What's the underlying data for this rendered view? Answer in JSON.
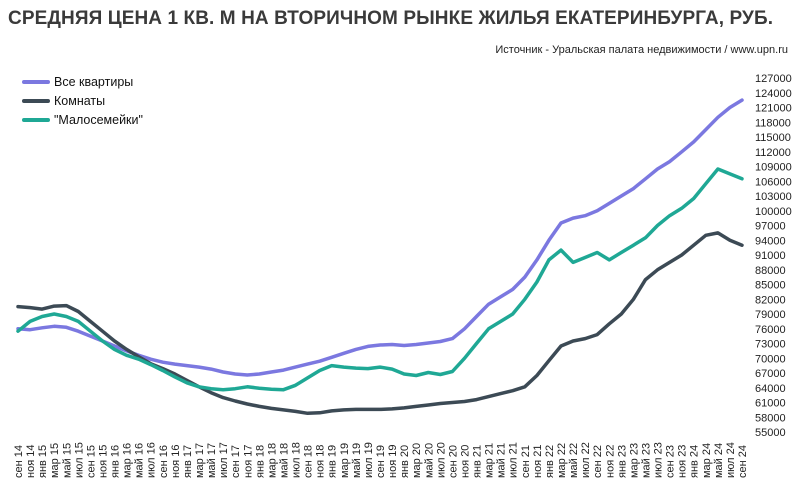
{
  "header": {
    "title": "СРЕДНЯЯ ЦЕНА 1 КВ. М НА ВТОРИЧНОМ РЫНКЕ ЖИЛЬЯ ЕКАТЕРИНБУРГА, РУБ.",
    "source": "Источник - Уральская палата недвижимости  / www.upn.ru"
  },
  "chart_data": {
    "type": "line",
    "title": "СРЕДНЯЯ ЦЕНА 1 КВ. М НА ВТОРИЧНОМ РЫНКЕ ЖИЛЬЯ ЕКАТЕРИНБУРГА, РУБ.",
    "ylim": [
      55000,
      127000
    ],
    "yticks": [
      55000,
      58000,
      61000,
      64000,
      67000,
      70000,
      73000,
      76000,
      79000,
      82000,
      85000,
      88000,
      91000,
      94000,
      97000,
      100000,
      103000,
      106000,
      109000,
      112000,
      115000,
      118000,
      121000,
      124000,
      127000
    ],
    "ytick_labels": [
      "55000",
      "58000",
      "61000",
      "64000",
      "67000",
      "70000",
      "73000",
      "76000",
      "79000",
      "82000",
      "85000",
      "88000",
      "91000",
      "94000",
      "97000",
      "100000",
      "103000",
      "106000",
      "109000",
      "112000",
      "115000",
      "118000",
      "121000",
      "124000",
      "127000"
    ],
    "x_labels": [
      "сен 14",
      "ноя 14",
      "янв 15",
      "мар 15",
      "май 15",
      "июл 15",
      "сен 15",
      "ноя 15",
      "янв 16",
      "мар 16",
      "май 16",
      "июл 16",
      "сен 16",
      "ноя 16",
      "янв 17",
      "мар 17",
      "май 17",
      "июл 17",
      "сен 17",
      "ноя 17",
      "янв 18",
      "мар 18",
      "май 18",
      "июл 18",
      "сен 18",
      "ноя 18",
      "янв 19",
      "мар 19",
      "май 19",
      "июл 19",
      "сен 19",
      "ноя 19",
      "янв 20",
      "мар 20",
      "май 20",
      "июл 20",
      "сен 20",
      "ноя 20",
      "янв 21",
      "мар 21",
      "май 21",
      "июл 21",
      "сен 21",
      "ноя 21",
      "янв 22",
      "мар 22",
      "май 22",
      "июл 22",
      "сен 22",
      "ноя 22",
      "янв 23",
      "мар 23",
      "май 23",
      "июл 23",
      "сен 23",
      "ноя 23",
      "янв 24",
      "мар 24",
      "май 24",
      "июл 24",
      "сен 24"
    ],
    "series": [
      {
        "name": "Все квартиры",
        "color": "#7b78e0",
        "values": [
          76000,
          75800,
          76200,
          76500,
          76300,
          75500,
          74500,
          73500,
          72500,
          71500,
          70600,
          69800,
          69200,
          68800,
          68500,
          68200,
          67800,
          67200,
          66800,
          66600,
          66800,
          67200,
          67600,
          68200,
          68800,
          69400,
          70200,
          71000,
          71800,
          72400,
          72700,
          72800,
          72600,
          72800,
          73100,
          73400,
          74000,
          76000,
          78500,
          81000,
          82500,
          84000,
          86500,
          90000,
          94000,
          97500,
          98500,
          99000,
          100000,
          101500,
          103000,
          104500,
          106500,
          108500,
          110000,
          112000,
          114000,
          116500,
          119000,
          121000,
          122500
        ]
      },
      {
        "name": "Комнаты",
        "color": "#3c4a55",
        "values": [
          80500,
          80300,
          80000,
          80600,
          80700,
          79500,
          77500,
          75500,
          73500,
          71800,
          70300,
          68900,
          67900,
          66800,
          65500,
          64200,
          63000,
          62000,
          61300,
          60700,
          60200,
          59800,
          59500,
          59200,
          58800,
          58900,
          59300,
          59500,
          59600,
          59600,
          59600,
          59700,
          59900,
          60200,
          60500,
          60800,
          61000,
          61200,
          61600,
          62200,
          62800,
          63400,
          64200,
          66500,
          69500,
          72500,
          73500,
          74000,
          74800,
          77000,
          79000,
          82000,
          86000,
          88000,
          89500,
          91000,
          93000,
          95000,
          95500,
          94000,
          93000
        ]
      },
      {
        "name": "\"Малосемейки\"",
        "color": "#1fa895",
        "values": [
          75500,
          77500,
          78500,
          79000,
          78500,
          77500,
          75500,
          73500,
          71800,
          70600,
          69800,
          68700,
          67500,
          66200,
          65000,
          64200,
          63800,
          63600,
          63800,
          64200,
          63900,
          63700,
          63600,
          64500,
          66000,
          67500,
          68500,
          68200,
          68000,
          67900,
          68200,
          67800,
          66800,
          66500,
          67100,
          66700,
          67300,
          70000,
          73000,
          76000,
          77500,
          79000,
          82000,
          85500,
          90000,
          92000,
          89500,
          90500,
          91500,
          90000,
          91500,
          93000,
          94500,
          97000,
          99000,
          100500,
          102500,
          105500,
          108500,
          107500,
          106500
        ]
      }
    ]
  }
}
